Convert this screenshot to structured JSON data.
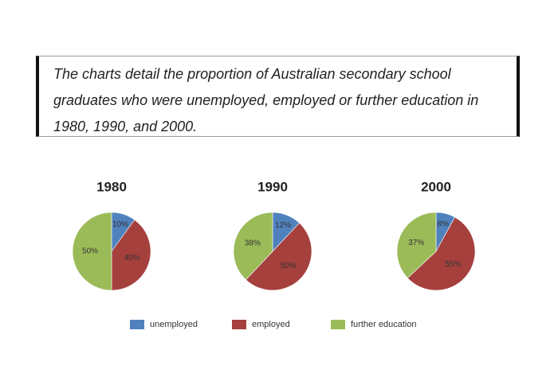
{
  "description": "The charts detail the proportion of Australian secondary school graduates who were unemployed, employed or further education in 1980, 1990, and 2000.",
  "chart_data": [
    {
      "type": "pie",
      "title": "1980",
      "categories": [
        "unemployed",
        "employed",
        "further education"
      ],
      "values": [
        10,
        40,
        50
      ],
      "value_labels": [
        "10%",
        "40%",
        "50%"
      ],
      "colors": [
        "#4f81bd",
        "#a5403d",
        "#9bbb59"
      ]
    },
    {
      "type": "pie",
      "title": "1990",
      "categories": [
        "unemployed",
        "employed",
        "further education"
      ],
      "values": [
        12,
        50,
        38
      ],
      "value_labels": [
        "12%",
        "50%",
        "38%"
      ],
      "colors": [
        "#4f81bd",
        "#a5403d",
        "#9bbb59"
      ]
    },
    {
      "type": "pie",
      "title": "2000",
      "categories": [
        "unemployed",
        "employed",
        "further education"
      ],
      "values": [
        8,
        55,
        37
      ],
      "value_labels": [
        "8%",
        "55%",
        "37%"
      ],
      "colors": [
        "#4f81bd",
        "#a5403d",
        "#9bbb59"
      ]
    }
  ]
}
